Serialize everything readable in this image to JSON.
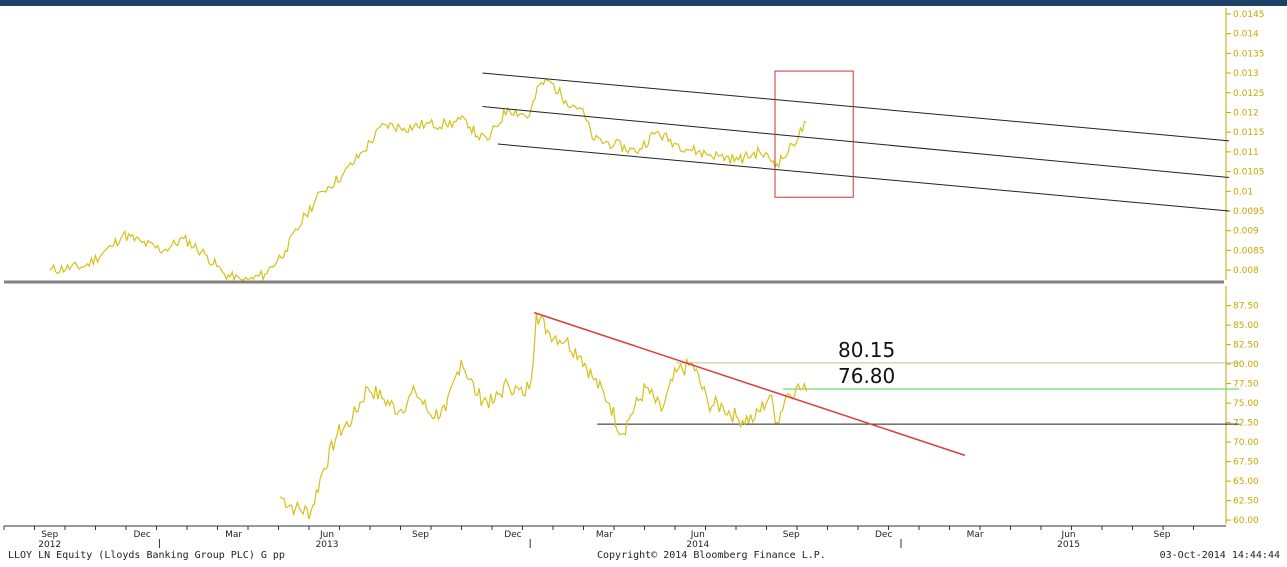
{
  "footer": {
    "left": "LLOY LN Equity (Lloyds Banking Group PLC) G pp",
    "center": "Copyright© 2014 Bloomberg Finance L.P.",
    "right": "03-Oct-2014 14:44:44"
  },
  "colors": {
    "price_line": "#d4c21a",
    "axis_text": "#c8a800",
    "trend_red": "#e03a3a",
    "resistance_green": "#4cd44c",
    "level_80": "#b8c88a",
    "channel": "#222222",
    "box": "#cc3333",
    "divider": "#808080",
    "topbar": "#1e3f66"
  },
  "chart_data": [
    {
      "type": "line",
      "panel": "upper",
      "ylim": [
        0.00775,
        0.01465
      ],
      "ytick_labels": [
        "0.0145",
        "0.014",
        "0.0135",
        "0.013",
        "0.0125",
        "0.012",
        "0.0115",
        "0.011",
        "0.0105",
        "0.01",
        "0.0095",
        "0.009",
        "0.0085",
        "0.008"
      ],
      "series": [
        {
          "x": [
            "2012-09-15",
            "2012-10-20",
            "2012-11-15",
            "2012-11-26",
            "2012-12-15",
            "2013-01-05",
            "2013-01-25",
            "2013-02-15",
            "2013-03-06",
            "2013-03-25",
            "2013-04-15",
            "2013-05-05",
            "2013-05-25",
            "2013-06-10",
            "2013-06-30",
            "2013-07-20",
            "2013-08-10",
            "2013-08-30",
            "2013-09-20",
            "2013-10-10",
            "2013-10-30",
            "2013-11-10",
            "2013-11-20",
            "2013-12-10",
            "2013-12-31",
            "2014-01-10",
            "2014-01-20",
            "2014-02-05",
            "2014-02-20",
            "2014-03-05",
            "2014-03-25",
            "2014-04-15",
            "2014-05-05",
            "2014-05-25",
            "2014-06-15",
            "2014-07-05",
            "2014-07-25",
            "2014-08-15",
            "2014-09-01",
            "2014-09-12",
            "2014-09-30"
          ],
          "values": [
            0.008,
            0.0081,
            0.0086,
            0.0089,
            0.0087,
            0.0085,
            0.0088,
            0.0084,
            0.0079,
            0.0077,
            0.0079,
            0.0085,
            0.0094,
            0.01,
            0.0104,
            0.011,
            0.0117,
            0.0116,
            0.0117,
            0.0117,
            0.0118,
            0.0114,
            0.0113,
            0.0121,
            0.0119,
            0.0127,
            0.0128,
            0.0123,
            0.0121,
            0.0113,
            0.0112,
            0.011,
            0.0115,
            0.0112,
            0.011,
            0.0109,
            0.0108,
            0.011,
            0.0107,
            0.011,
            0.01175
          ]
        }
      ],
      "channel_lines": [
        {
          "start": [
            "2013-11-15",
            0.013
          ],
          "end": [
            "2015-11-20",
            0.01128
          ]
        },
        {
          "start": [
            "2013-11-15",
            0.01215
          ],
          "end": [
            "2015-11-20",
            0.01035
          ]
        },
        {
          "start": [
            "2013-11-30",
            0.0112
          ],
          "end": [
            "2015-11-20",
            0.0095
          ]
        }
      ],
      "highlight_box": {
        "x": [
          "2014-08-30",
          "2014-11-15"
        ],
        "y": [
          0.00985,
          0.01305
        ]
      }
    },
    {
      "type": "line",
      "panel": "lower",
      "ylim": [
        59.5,
        89.5
      ],
      "ytick_labels": [
        "87.50",
        "85.00",
        "82.50",
        "80.00",
        "77.50",
        "75.00",
        "72.50",
        "70.00",
        "67.50",
        "65.00",
        "62.50",
        "60.00"
      ],
      "x_ticks": [
        "Sep",
        "Dec",
        "Mar",
        "Jun",
        "Sep",
        "Dec",
        "Mar",
        "Jun",
        "Sep",
        "Dec",
        "Mar",
        "Jun",
        "Sep"
      ],
      "year_labels": [
        "2012",
        "2013",
        "2014",
        "2015"
      ],
      "series": [
        {
          "x": [
            "2013-04-30",
            "2013-05-15",
            "2013-05-30",
            "2013-06-10",
            "2013-06-25",
            "2013-07-10",
            "2013-07-25",
            "2013-08-10",
            "2013-08-25",
            "2013-09-10",
            "2013-09-25",
            "2013-10-10",
            "2013-10-25",
            "2013-11-10",
            "2013-11-25",
            "2013-12-10",
            "2013-12-25",
            "2014-01-02",
            "2014-01-07",
            "2014-01-20",
            "2014-02-05",
            "2014-02-20",
            "2014-03-05",
            "2014-03-20",
            "2014-04-01",
            "2014-04-10",
            "2014-04-25",
            "2014-05-10",
            "2014-05-25",
            "2014-06-10",
            "2014-06-25",
            "2014-07-10",
            "2014-07-25",
            "2014-08-10",
            "2014-08-25",
            "2014-09-01",
            "2014-09-10",
            "2014-09-20",
            "2014-09-30"
          ],
          "values": [
            63.0,
            61.5,
            61.0,
            66.0,
            71.0,
            73.0,
            77.0,
            75.5,
            74.0,
            76.5,
            73.5,
            74.0,
            80.5,
            76.0,
            75.0,
            77.5,
            76.0,
            78.0,
            86.5,
            84.0,
            83.0,
            81.0,
            78.0,
            75.0,
            71.0,
            73.5,
            77.0,
            74.0,
            79.0,
            80.0,
            75.0,
            74.5,
            73.0,
            73.0,
            76.0,
            72.5,
            76.0,
            77.0,
            76.5
          ]
        }
      ],
      "trend_line": {
        "start": [
          "2014-01-05",
          86.6
        ],
        "end": [
          "2015-03-05",
          68.3
        ]
      },
      "levels": [
        {
          "value": 80.15,
          "label": "80.15",
          "from": "2014-05-25",
          "to": "2015-11-30"
        },
        {
          "value": 76.8,
          "label": "76.80",
          "from": "2014-09-07",
          "to": "2015-11-30"
        },
        {
          "value": 72.3,
          "label": "",
          "from": "2014-03-08",
          "to": "2015-11-30"
        }
      ]
    }
  ]
}
